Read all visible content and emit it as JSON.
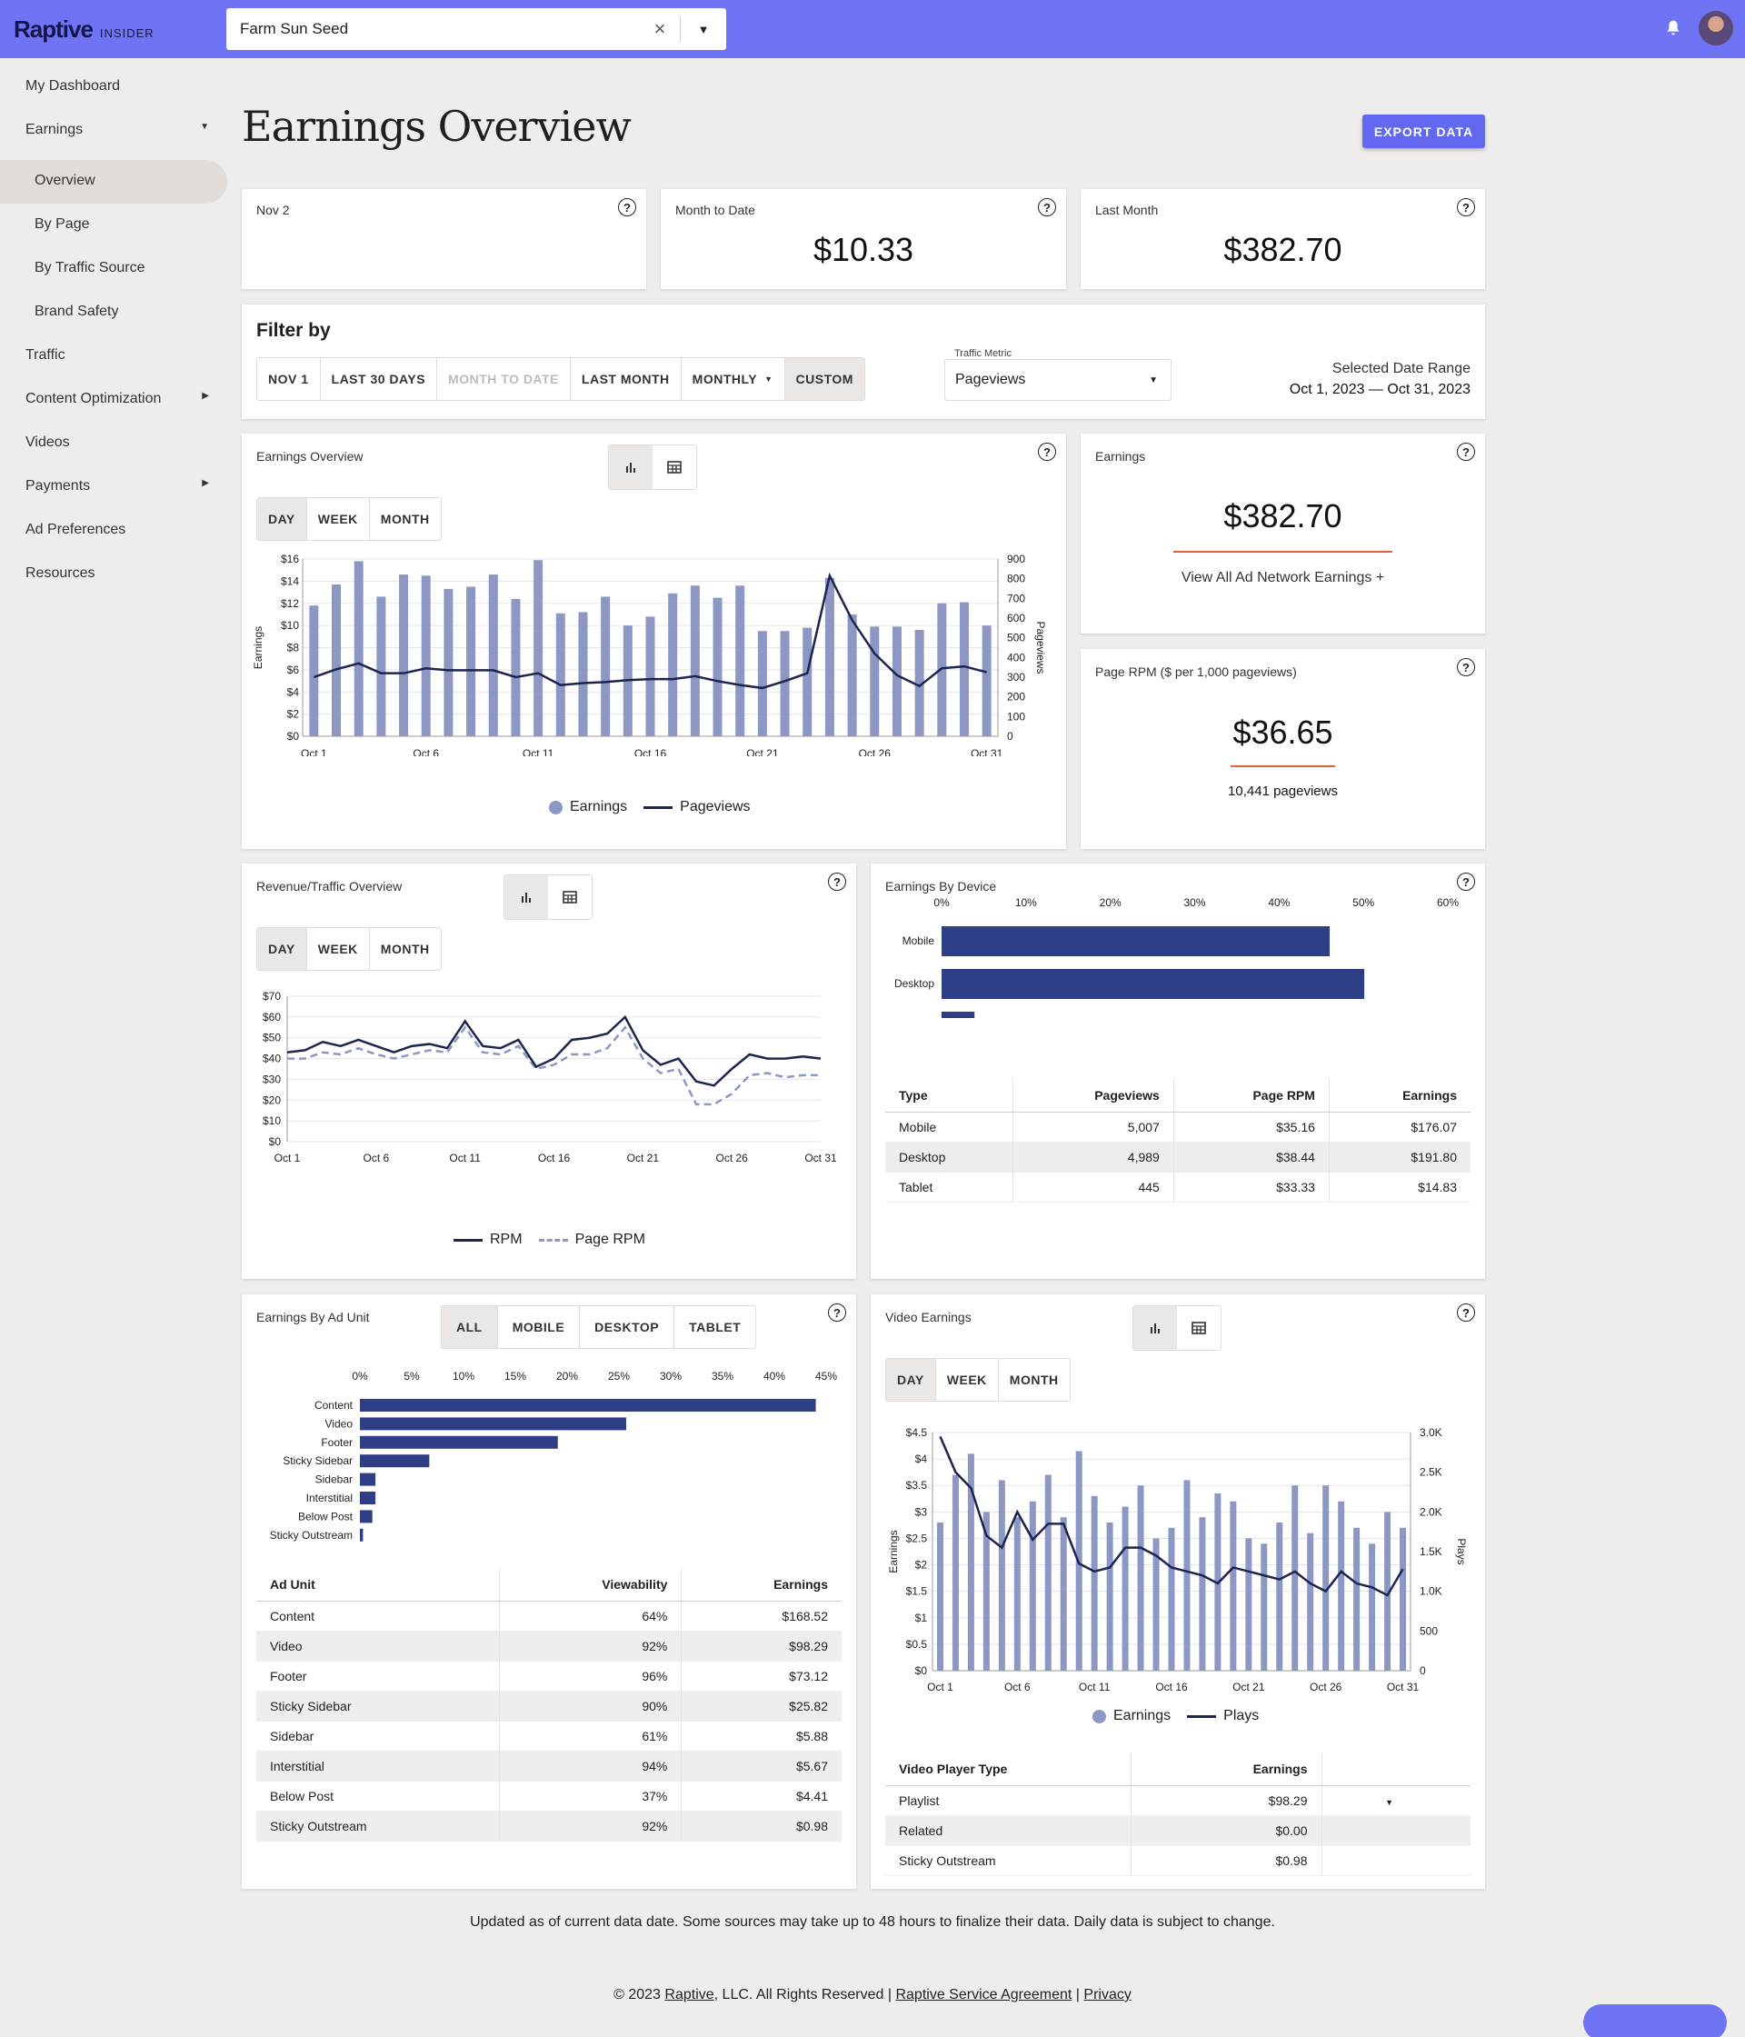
{
  "header": {
    "logo": "Raptive",
    "logo_sub": "INSIDER",
    "site": "Farm Sun Seed"
  },
  "sidebar": {
    "items": [
      {
        "label": "My Dashboard"
      },
      {
        "label": "Earnings"
      },
      {
        "label": "Overview"
      },
      {
        "label": "By Page"
      },
      {
        "label": "By Traffic Source"
      },
      {
        "label": "Brand Safety"
      },
      {
        "label": "Traffic"
      },
      {
        "label": "Content Optimization"
      },
      {
        "label": "Videos"
      },
      {
        "label": "Payments"
      },
      {
        "label": "Ad Preferences"
      },
      {
        "label": "Resources"
      }
    ]
  },
  "page": {
    "title": "Earnings Overview",
    "export": "EXPORT DATA"
  },
  "summary": [
    {
      "label": "Nov 2",
      "value": ""
    },
    {
      "label": "Month to Date",
      "value": "$10.33"
    },
    {
      "label": "Last Month",
      "value": "$382.70"
    }
  ],
  "filter": {
    "title": "Filter by",
    "buttons": [
      "NOV 1",
      "LAST 30 DAYS",
      "MONTH TO DATE",
      "LAST MONTH",
      "MONTHLY",
      "CUSTOM"
    ],
    "metric_label": "Traffic Metric",
    "metric_value": "Pageviews",
    "range_label": "Selected Date Range",
    "range_value": "Oct 1, 2023 — Oct 31, 2023"
  },
  "period_buttons": [
    "DAY",
    "WEEK",
    "MONTH"
  ],
  "earnings_overview": {
    "title": "Earnings Overview",
    "legend": [
      "Earnings",
      "Pageviews"
    ]
  },
  "earnings_card": {
    "title": "Earnings",
    "value": "$382.70",
    "link": "View All Ad Network Earnings +"
  },
  "rpm_card": {
    "title": "Page RPM ($ per 1,000 pageviews)",
    "value": "$36.65",
    "sub": "10,441 pageviews"
  },
  "revenue_traffic": {
    "title": "Revenue/Traffic Overview",
    "legend": [
      "RPM",
      "Page RPM"
    ]
  },
  "device": {
    "title": "Earnings By Device",
    "headers": [
      "Type",
      "Pageviews",
      "Page RPM",
      "Earnings"
    ],
    "rows": [
      [
        "Mobile",
        "5,007",
        "$35.16",
        "$176.07"
      ],
      [
        "Desktop",
        "4,989",
        "$38.44",
        "$191.80"
      ],
      [
        "Tablet",
        "445",
        "$33.33",
        "$14.83"
      ]
    ]
  },
  "ad_unit": {
    "title": "Earnings By Ad Unit",
    "tabs": [
      "ALL",
      "MOBILE",
      "DESKTOP",
      "TABLET"
    ],
    "headers": [
      "Ad Unit",
      "Viewability",
      "Earnings"
    ],
    "rows": [
      [
        "Content",
        "64%",
        "$168.52"
      ],
      [
        "Video",
        "92%",
        "$98.29"
      ],
      [
        "Footer",
        "96%",
        "$73.12"
      ],
      [
        "Sticky Sidebar",
        "90%",
        "$25.82"
      ],
      [
        "Sidebar",
        "61%",
        "$5.88"
      ],
      [
        "Interstitial",
        "94%",
        "$5.67"
      ],
      [
        "Below Post",
        "37%",
        "$4.41"
      ],
      [
        "Sticky Outstream",
        "92%",
        "$0.98"
      ]
    ]
  },
  "video": {
    "title": "Video Earnings",
    "legend": [
      "Earnings",
      "Plays"
    ],
    "headers": [
      "Video Player Type",
      "Earnings"
    ],
    "rows": [
      [
        "Playlist",
        "$98.29"
      ],
      [
        "Related",
        "$0.00"
      ],
      [
        "Sticky Outstream",
        "$0.98"
      ]
    ]
  },
  "footer": {
    "note": "Updated as of current data date. Some sources may take up to 48 hours to finalize their data. Daily data is subject to change.",
    "copy": "© 2023",
    "brand": "Raptive",
    "rights": ", LLC. All Rights Reserved |",
    "agreement": "Raptive Service Agreement",
    "sep": "|",
    "privacy": "Privacy"
  },
  "colors": {
    "accent": "#6f74f5",
    "bar": "#8d97c4",
    "line": "#1c2550",
    "hbar": "#2f3f86"
  },
  "chart_data": [
    {
      "type": "bar",
      "title": "Earnings Overview",
      "categories": [
        "Oct 1",
        "Oct 2",
        "Oct 3",
        "Oct 4",
        "Oct 5",
        "Oct 6",
        "Oct 7",
        "Oct 8",
        "Oct 9",
        "Oct 10",
        "Oct 11",
        "Oct 12",
        "Oct 13",
        "Oct 14",
        "Oct 15",
        "Oct 16",
        "Oct 17",
        "Oct 18",
        "Oct 19",
        "Oct 20",
        "Oct 21",
        "Oct 22",
        "Oct 23",
        "Oct 24",
        "Oct 25",
        "Oct 26",
        "Oct 27",
        "Oct 28",
        "Oct 29",
        "Oct 30",
        "Oct 31"
      ],
      "xticks": [
        "Oct 1",
        "Oct 6",
        "Oct 11",
        "Oct 16",
        "Oct 21",
        "Oct 26",
        "Oct 31"
      ],
      "ylabel": "Earnings",
      "y2label": "Pageviews",
      "ylim": [
        0,
        16
      ],
      "y2lim": [
        0,
        900
      ],
      "yticks": [
        "$0",
        "$2",
        "$4",
        "$6",
        "$8",
        "$10",
        "$12",
        "$14",
        "$16"
      ],
      "y2ticks": [
        "0",
        "100",
        "200",
        "300",
        "400",
        "500",
        "600",
        "700",
        "800",
        "900"
      ],
      "series": [
        {
          "name": "Earnings",
          "values": [
            11.8,
            13.7,
            15.8,
            12.6,
            14.6,
            14.5,
            13.3,
            13.5,
            14.6,
            12.4,
            15.9,
            11.1,
            11.2,
            12.6,
            10.0,
            10.8,
            12.9,
            13.6,
            12.5,
            13.6,
            9.5,
            9.5,
            9.8,
            14.3,
            11.0,
            9.9,
            9.9,
            9.6,
            12.0,
            12.1,
            10.0
          ]
        },
        {
          "name": "Pageviews",
          "values": [
            300,
            340,
            370,
            320,
            320,
            345,
            335,
            335,
            335,
            300,
            320,
            260,
            270,
            275,
            285,
            290,
            290,
            305,
            280,
            260,
            245,
            280,
            320,
            815,
            590,
            420,
            310,
            255,
            345,
            355,
            325
          ]
        }
      ]
    },
    {
      "type": "line",
      "title": "Revenue/Traffic Overview",
      "categories": [
        "Oct 1",
        "Oct 2",
        "Oct 3",
        "Oct 4",
        "Oct 5",
        "Oct 6",
        "Oct 7",
        "Oct 8",
        "Oct 9",
        "Oct 10",
        "Oct 11",
        "Oct 12",
        "Oct 13",
        "Oct 14",
        "Oct 15",
        "Oct 16",
        "Oct 17",
        "Oct 18",
        "Oct 19",
        "Oct 20",
        "Oct 21",
        "Oct 22",
        "Oct 23",
        "Oct 24",
        "Oct 25",
        "Oct 26",
        "Oct 27",
        "Oct 28",
        "Oct 29",
        "Oct 30",
        "Oct 31"
      ],
      "xticks": [
        "Oct 1",
        "Oct 6",
        "Oct 11",
        "Oct 16",
        "Oct 21",
        "Oct 26",
        "Oct 31"
      ],
      "ylim": [
        0,
        70
      ],
      "yticks": [
        "$0",
        "$10",
        "$20",
        "$30",
        "$40",
        "$50",
        "$60",
        "$70"
      ],
      "series": [
        {
          "name": "RPM",
          "values": [
            43,
            44,
            48,
            46,
            49,
            46,
            43,
            46,
            47,
            45,
            58,
            46,
            45,
            49,
            36,
            40,
            49,
            50,
            52,
            60,
            44,
            37,
            40,
            29,
            27,
            35,
            42,
            40,
            40,
            41,
            40
          ]
        },
        {
          "name": "Page RPM",
          "values": [
            40,
            40,
            43,
            42,
            45,
            42,
            40,
            42,
            44,
            43,
            55,
            43,
            42,
            46,
            35,
            37,
            42,
            42,
            45,
            55,
            40,
            33,
            35,
            18,
            18,
            23,
            32,
            33,
            31,
            32,
            32
          ]
        }
      ]
    },
    {
      "type": "bar",
      "title": "Earnings By Device",
      "categories": [
        "Mobile",
        "Desktop",
        "Tablet"
      ],
      "values": [
        46,
        50.1,
        3.9
      ],
      "xlim": [
        0,
        60
      ],
      "xticks": [
        "0%",
        "10%",
        "20%",
        "30%",
        "40%",
        "50%",
        "60%"
      ]
    },
    {
      "type": "bar",
      "title": "Earnings By Ad Unit",
      "categories": [
        "Content",
        "Video",
        "Footer",
        "Sticky Sidebar",
        "Sidebar",
        "Interstitial",
        "Below Post",
        "Sticky Outstream"
      ],
      "values": [
        44,
        25.7,
        19.1,
        6.7,
        1.5,
        1.5,
        1.2,
        0.3
      ],
      "xlim": [
        0,
        45
      ],
      "xticks": [
        "0%",
        "5%",
        "10%",
        "15%",
        "20%",
        "25%",
        "30%",
        "35%",
        "40%",
        "45%"
      ]
    },
    {
      "type": "bar",
      "title": "Video Earnings",
      "categories": [
        "Oct 1",
        "Oct 2",
        "Oct 3",
        "Oct 4",
        "Oct 5",
        "Oct 6",
        "Oct 7",
        "Oct 8",
        "Oct 9",
        "Oct 10",
        "Oct 11",
        "Oct 12",
        "Oct 13",
        "Oct 14",
        "Oct 15",
        "Oct 16",
        "Oct 17",
        "Oct 18",
        "Oct 19",
        "Oct 20",
        "Oct 21",
        "Oct 22",
        "Oct 23",
        "Oct 24",
        "Oct 25",
        "Oct 26",
        "Oct 27",
        "Oct 28",
        "Oct 29",
        "Oct 30",
        "Oct 31"
      ],
      "xticks": [
        "Oct 1",
        "Oct 6",
        "Oct 11",
        "Oct 16",
        "Oct 21",
        "Oct 26",
        "Oct 31"
      ],
      "ylabel": "Earnings",
      "y2label": "Plays",
      "ylim": [
        0,
        4.5
      ],
      "y2lim": [
        0,
        3000
      ],
      "yticks": [
        "$0",
        "$0.5",
        "$1",
        "$1.5",
        "$2",
        "$2.5",
        "$3",
        "$3.5",
        "$4",
        "$4.5"
      ],
      "y2ticks": [
        "0",
        "500",
        "1.0K",
        "1.5K",
        "2.0K",
        "2.5K",
        "3.0K"
      ],
      "series": [
        {
          "name": "Earnings",
          "values": [
            2.8,
            3.7,
            4.1,
            3.0,
            3.6,
            2.9,
            3.2,
            3.7,
            2.9,
            4.15,
            3.3,
            2.8,
            3.1,
            3.5,
            2.5,
            2.7,
            3.6,
            2.9,
            3.35,
            3.2,
            2.5,
            2.4,
            2.8,
            3.5,
            2.6,
            3.5,
            3.2,
            2.7,
            2.4,
            3.0,
            2.7
          ]
        },
        {
          "name": "Plays",
          "values": [
            2950,
            2500,
            2300,
            1700,
            1550,
            2000,
            1650,
            1850,
            1850,
            1350,
            1250,
            1300,
            1550,
            1550,
            1450,
            1300,
            1250,
            1200,
            1100,
            1300,
            1250,
            1200,
            1150,
            1250,
            1100,
            1000,
            1250,
            1100,
            1050,
            950,
            1280
          ]
        }
      ]
    }
  ]
}
